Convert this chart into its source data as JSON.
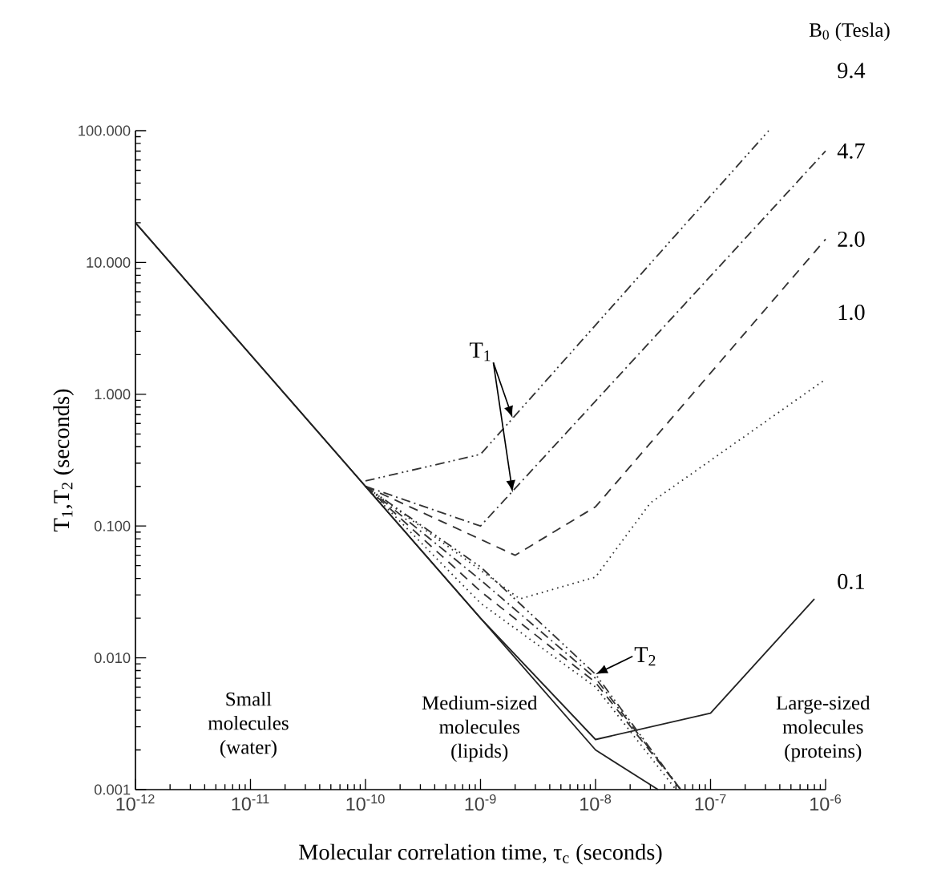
{
  "chart_data": {
    "type": "line",
    "xlabel": "Molecular correlation time, τ$_{c}$ (seconds)",
    "ylabel": "T$_{1}$,T$_{2}$ (seconds)",
    "legend_title": "B$_{0}$ (Tesla)",
    "log": "xy",
    "xlim": [
      1e-12,
      1e-06
    ],
    "ylim": [
      0.001,
      100
    ],
    "xticks": [
      {
        "value": 1e-12,
        "label": "10$^{-12}$"
      },
      {
        "value": 1e-11,
        "label": "10$^{-11}$"
      },
      {
        "value": 1e-10,
        "label": "10$^{-10}$"
      },
      {
        "value": 1e-09,
        "label": "10$^{-9}$"
      },
      {
        "value": 1e-08,
        "label": "10$^{-8}$"
      },
      {
        "value": 1e-07,
        "label": "10$^{-7}$"
      },
      {
        "value": 1e-06,
        "label": "10$^{-6}$"
      }
    ],
    "yticks": [
      {
        "value": 0.001,
        "label": "0.001"
      },
      {
        "value": 0.01,
        "label": "0.010"
      },
      {
        "value": 0.1,
        "label": "0.100"
      },
      {
        "value": 1,
        "label": "1.000"
      },
      {
        "value": 10,
        "label": "10.000"
      },
      {
        "value": 100,
        "label": "100.000"
      }
    ],
    "annotations": [
      {
        "text": "T$_{1}$",
        "x": 1.9e-09,
        "y": 0.66
      },
      {
        "text": "T$_{2}$",
        "x": 1e-08,
        "y": 0.0075
      },
      "Small molecules (water)",
      "Medium-sized molecules (lipids)",
      "Large-sized molecules (proteins)"
    ],
    "series": [
      {
        "name": "9.4",
        "color": "#333333",
        "line_style": "dashdotdot",
        "x": [
          1e-10,
          1e-09,
          3.2e-07
        ],
        "values": [
          0.22,
          0.35,
          100
        ]
      },
      {
        "name": "4.7",
        "color": "#333333",
        "line_style": "dashdot",
        "x": [
          1e-10,
          1e-09,
          1e-06
        ],
        "values": [
          0.2,
          0.1,
          70
        ]
      },
      {
        "name": "2.0",
        "color": "#333333",
        "line_style": "dashed",
        "x": [
          1e-10,
          2e-09,
          1e-08,
          1e-06
        ],
        "values": [
          0.2,
          0.06,
          0.14,
          15
        ]
      },
      {
        "name": "1.0",
        "color": "#333333",
        "line_style": "dotted",
        "x": [
          1e-10,
          2.2e-09,
          1e-08,
          3e-08,
          1e-06
        ],
        "values": [
          0.2,
          0.028,
          0.041,
          0.15,
          1.3
        ]
      },
      {
        "name": "0.1",
        "color": "#222222",
        "line_style": "solid",
        "x": [
          1e-12,
          1e-09,
          1e-08,
          1e-07,
          8e-07
        ],
        "values": [
          20,
          0.02,
          0.0024,
          0.0038,
          0.028
        ]
      },
      {
        "color": "#333333",
        "line_style": "dashdotdot",
        "x": [
          1e-10,
          1e-09,
          1e-08,
          5.5e-08
        ],
        "values": [
          0.2,
          0.049,
          0.0075,
          0.001
        ]
      },
      {
        "color": "#333333",
        "line_style": "dashdot",
        "x": [
          1e-10,
          1e-09,
          1e-08,
          5.5e-08
        ],
        "values": [
          0.2,
          0.039,
          0.007,
          0.001
        ]
      },
      {
        "color": "#333333",
        "line_style": "dashed",
        "x": [
          1e-10,
          1e-09,
          1e-08,
          5.5e-08
        ],
        "values": [
          0.2,
          0.032,
          0.0065,
          0.001
        ]
      },
      {
        "color": "#333333",
        "line_style": "dotted",
        "x": [
          1e-10,
          1e-09,
          1e-08,
          5e-08
        ],
        "values": [
          0.2,
          0.026,
          0.006,
          0.001
        ]
      },
      {
        "color": "#222222",
        "line_style": "solid",
        "x": [
          1e-12,
          1e-08,
          3.5e-08
        ],
        "values": [
          20,
          0.002,
          0.001
        ]
      }
    ]
  }
}
